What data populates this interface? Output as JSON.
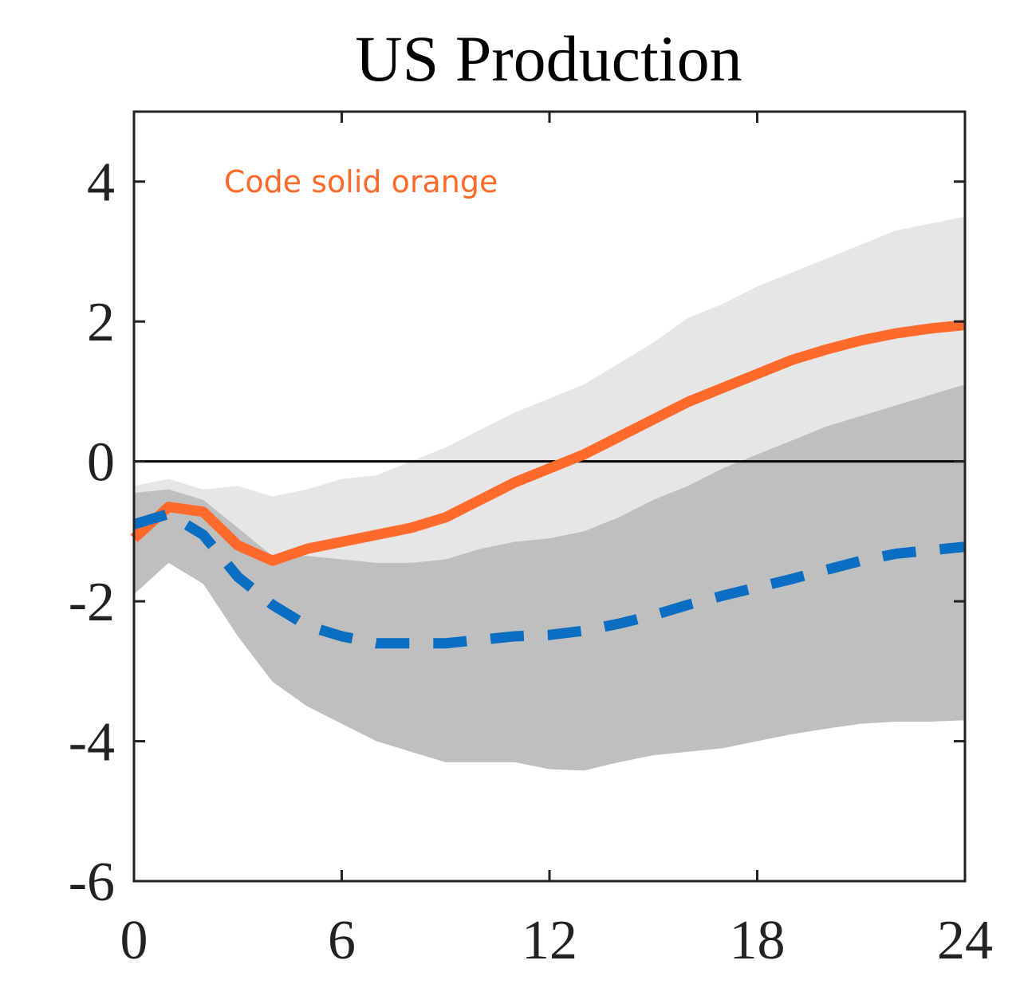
{
  "chart_data": {
    "type": "line",
    "title": "US Production",
    "xlabel": "",
    "ylabel": "",
    "xlim": [
      0,
      24
    ],
    "ylim": [
      -6,
      5
    ],
    "xticks": [
      0,
      6,
      12,
      18,
      24
    ],
    "yticks": [
      -6,
      -4,
      -2,
      0,
      2,
      4
    ],
    "xtick_labels": [
      "0",
      "6",
      "12",
      "18",
      "24"
    ],
    "ytick_labels": [
      "-6",
      "-4",
      "-2",
      "0",
      "2",
      "4"
    ],
    "grid": false,
    "zero_line": true,
    "x": [
      0,
      1,
      2,
      3,
      4,
      5,
      6,
      7,
      8,
      9,
      10,
      11,
      12,
      13,
      14,
      15,
      16,
      17,
      18,
      19,
      20,
      21,
      22,
      23,
      24
    ],
    "bands": [
      {
        "color": "#e6e6e6",
        "lower": [
          -1.6,
          -1.45,
          -1.65,
          -2.1,
          -2.35,
          -2.3,
          -2.25,
          -2.25,
          -2.1,
          -1.95,
          -1.75,
          -1.5,
          -1.3,
          -1.1,
          -0.85,
          -0.6,
          -0.35,
          -0.1,
          0.1,
          0.3,
          0.45,
          0.6,
          0.7,
          0.75,
          0.8
        ],
        "upper": [
          -0.35,
          -0.25,
          -0.4,
          -0.35,
          -0.5,
          -0.4,
          -0.25,
          -0.2,
          0.0,
          0.2,
          0.45,
          0.7,
          0.9,
          1.1,
          1.4,
          1.7,
          2.05,
          2.25,
          2.5,
          2.7,
          2.9,
          3.1,
          3.3,
          3.4,
          3.5
        ]
      },
      {
        "color": "#bfbfbf",
        "lower": [
          -1.9,
          -1.45,
          -1.75,
          -2.5,
          -3.15,
          -3.5,
          -3.75,
          -4.0,
          -4.15,
          -4.3,
          -4.3,
          -4.3,
          -4.4,
          -4.42,
          -4.3,
          -4.2,
          -4.15,
          -4.1,
          -4.0,
          -3.9,
          -3.82,
          -3.75,
          -3.72,
          -3.72,
          -3.7
        ],
        "upper": [
          -0.45,
          -0.4,
          -0.55,
          -0.95,
          -1.35,
          -1.35,
          -1.4,
          -1.45,
          -1.45,
          -1.4,
          -1.25,
          -1.15,
          -1.1,
          -1.0,
          -0.8,
          -0.55,
          -0.35,
          -0.1,
          0.1,
          0.3,
          0.5,
          0.65,
          0.8,
          0.95,
          1.1
        ]
      }
    ],
    "series": [
      {
        "name": "",
        "color": "#ff6a2b",
        "style": "solid",
        "values": [
          -1.1,
          -0.65,
          -0.72,
          -1.2,
          -1.42,
          -1.25,
          -1.15,
          -1.05,
          -0.95,
          -0.8,
          -0.55,
          -0.3,
          -0.1,
          0.1,
          0.35,
          0.6,
          0.85,
          1.05,
          1.25,
          1.45,
          1.6,
          1.73,
          1.83,
          1.9,
          1.95
        ]
      },
      {
        "name": "",
        "color": "#0a6fc2",
        "style": "dashed",
        "values": [
          -0.9,
          -0.75,
          -1.05,
          -1.65,
          -2.05,
          -2.35,
          -2.5,
          -2.6,
          -2.6,
          -2.6,
          -2.55,
          -2.5,
          -2.48,
          -2.42,
          -2.32,
          -2.2,
          -2.05,
          -1.92,
          -1.8,
          -1.68,
          -1.55,
          -1.42,
          -1.32,
          -1.27,
          -1.22
        ]
      }
    ],
    "annotations": [
      {
        "text": "Code solid orange",
        "x": 2.6,
        "y": 3.85,
        "color": "#ff6a2b"
      }
    ]
  }
}
